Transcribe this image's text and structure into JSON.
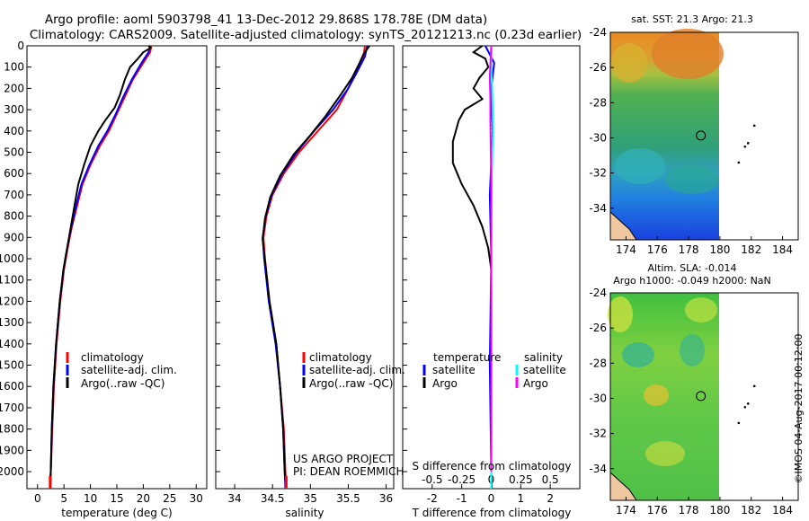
{
  "header": {
    "title_line1": "Argo profile: aoml 5903798_41 13-Dec-2012 29.868S 178.78E (DM data)",
    "title_line2": "Climatology: CARS2009. Satellite-adjusted climatology: synTS_20121213.nc (0.23d earlier)"
  },
  "colors": {
    "climatology": "#ff0000",
    "satellite": "#0000ff",
    "argo": "#000000",
    "argo_salinity_diff": "#ff00ff",
    "satellite_salinity_diff": "#00ffff"
  },
  "chart_data": [
    {
      "id": "temperature",
      "type": "line",
      "xlabel": "temperature (deg C)",
      "ylabel": "",
      "xlim": [
        -2,
        32
      ],
      "ylim": [
        2080,
        0
      ],
      "xticks": [
        "0",
        "5",
        "10",
        "15",
        "20",
        "25",
        "30"
      ],
      "xtick_values": [
        0,
        5,
        10,
        15,
        20,
        25,
        30
      ],
      "yticks": [
        "0",
        "100",
        "200",
        "300",
        "400",
        "500",
        "600",
        "700",
        "800",
        "900",
        "1000",
        "1100",
        "1200",
        "1300",
        "1400",
        "1500",
        "1600",
        "1700",
        "1800",
        "1900",
        "2000"
      ],
      "ytick_values": [
        0,
        100,
        200,
        300,
        400,
        500,
        600,
        700,
        800,
        900,
        1000,
        1100,
        1200,
        1300,
        1400,
        1500,
        1600,
        1700,
        1800,
        1900,
        2000
      ],
      "legend": [
        "climatology",
        "satellite-adj. clim.",
        "Argo(..raw -QC)"
      ],
      "series": [
        {
          "name": "climatology",
          "color": "#ff0000",
          "points": [
            [
              21.5,
              0
            ],
            [
              21.3,
              30
            ],
            [
              20.5,
              60
            ],
            [
              19.5,
              100
            ],
            [
              18.0,
              160
            ],
            [
              16.5,
              240
            ],
            [
              15.0,
              320
            ],
            [
              13.5,
              400
            ],
            [
              11.8,
              470
            ],
            [
              10.0,
              560
            ],
            [
              8.5,
              650
            ],
            [
              7.5,
              750
            ],
            [
              6.5,
              850
            ],
            [
              5.7,
              950
            ],
            [
              5.0,
              1050
            ],
            [
              4.3,
              1200
            ],
            [
              3.6,
              1400
            ],
            [
              3.1,
              1600
            ],
            [
              2.8,
              1800
            ],
            [
              2.5,
              2000
            ],
            [
              2.4,
              2080
            ]
          ]
        },
        {
          "name": "satellite-adj. clim.",
          "color": "#0000ff",
          "points": [
            [
              21.3,
              0
            ],
            [
              21.0,
              30
            ],
            [
              20.2,
              60
            ],
            [
              19.2,
              100
            ],
            [
              17.8,
              160
            ],
            [
              16.2,
              240
            ],
            [
              14.8,
              320
            ],
            [
              13.2,
              400
            ],
            [
              11.5,
              470
            ],
            [
              9.8,
              560
            ],
            [
              8.3,
              650
            ],
            [
              7.3,
              750
            ],
            [
              6.4,
              850
            ],
            [
              5.6,
              950
            ],
            [
              4.9,
              1050
            ],
            [
              4.2,
              1200
            ],
            [
              3.5,
              1400
            ],
            [
              3.0,
              1600
            ],
            [
              2.7,
              1800
            ],
            [
              2.5,
              2000
            ],
            [
              2.4,
              2080
            ]
          ]
        },
        {
          "name": "Argo",
          "color": "#000000",
          "points": [
            [
              21.0,
              0
            ],
            [
              21.4,
              10
            ],
            [
              20.0,
              30
            ],
            [
              19.0,
              60
            ],
            [
              17.5,
              100
            ],
            [
              16.5,
              160
            ],
            [
              15.6,
              230
            ],
            [
              14.6,
              290
            ],
            [
              12.8,
              350
            ],
            [
              11.5,
              400
            ],
            [
              10.0,
              470
            ],
            [
              8.8,
              560
            ],
            [
              7.7,
              650
            ],
            [
              7.0,
              750
            ],
            [
              6.3,
              850
            ],
            [
              5.6,
              950
            ],
            [
              4.9,
              1050
            ],
            [
              4.2,
              1200
            ],
            [
              3.5,
              1400
            ],
            [
              3.0,
              1600
            ],
            [
              2.7,
              1800
            ],
            [
              2.5,
              2000
            ],
            [
              2.4,
              2040
            ]
          ]
        }
      ]
    },
    {
      "id": "salinity",
      "type": "line",
      "xlabel": "salinity",
      "xlim": [
        33.75,
        36.1
      ],
      "ylim": [
        2080,
        0
      ],
      "xticks": [
        "34",
        "34.5",
        "35",
        "35.5",
        "36"
      ],
      "xtick_values": [
        34,
        34.5,
        35,
        35.5,
        36
      ],
      "legend": [
        "climatology",
        "satellite-adj. clim.",
        "Argo(..raw -QC)"
      ],
      "annotation": [
        "US ARGO PROJECT",
        "PI: DEAN ROEMMICH"
      ],
      "series": [
        {
          "name": "climatology",
          "color": "#ff0000",
          "points": [
            [
              35.72,
              0
            ],
            [
              35.7,
              50
            ],
            [
              35.6,
              120
            ],
            [
              35.5,
              200
            ],
            [
              35.35,
              300
            ],
            [
              35.1,
              400
            ],
            [
              34.85,
              500
            ],
            [
              34.65,
              600
            ],
            [
              34.5,
              700
            ],
            [
              34.42,
              800
            ],
            [
              34.38,
              900
            ],
            [
              34.4,
              1000
            ],
            [
              34.46,
              1200
            ],
            [
              34.55,
              1400
            ],
            [
              34.6,
              1600
            ],
            [
              34.65,
              1800
            ],
            [
              34.67,
              2000
            ],
            [
              34.68,
              2080
            ]
          ]
        },
        {
          "name": "satellite-adj. clim.",
          "color": "#0000ff",
          "points": [
            [
              35.75,
              0
            ],
            [
              35.72,
              50
            ],
            [
              35.62,
              120
            ],
            [
              35.5,
              200
            ],
            [
              35.3,
              300
            ],
            [
              35.05,
              400
            ],
            [
              34.82,
              500
            ],
            [
              34.63,
              600
            ],
            [
              34.49,
              700
            ],
            [
              34.41,
              800
            ],
            [
              34.37,
              900
            ],
            [
              34.39,
              1000
            ],
            [
              34.45,
              1200
            ],
            [
              34.54,
              1400
            ],
            [
              34.6,
              1600
            ],
            [
              34.64,
              1800
            ],
            [
              34.66,
              2000
            ],
            [
              34.67,
              2080
            ]
          ]
        },
        {
          "name": "Argo",
          "color": "#000000",
          "points": [
            [
              35.78,
              0
            ],
            [
              35.7,
              40
            ],
            [
              35.65,
              80
            ],
            [
              35.55,
              150
            ],
            [
              35.4,
              230
            ],
            [
              35.2,
              330
            ],
            [
              35.0,
              420
            ],
            [
              34.78,
              510
            ],
            [
              34.6,
              610
            ],
            [
              34.47,
              710
            ],
            [
              34.4,
              810
            ],
            [
              34.37,
              910
            ],
            [
              34.4,
              1010
            ],
            [
              34.46,
              1200
            ],
            [
              34.55,
              1400
            ],
            [
              34.6,
              1600
            ],
            [
              34.64,
              1800
            ],
            [
              34.66,
              2000
            ],
            [
              34.67,
              2040
            ]
          ]
        }
      ]
    },
    {
      "id": "difference",
      "type": "line",
      "xlabel": "T difference from climatology",
      "secondary_xlabel": "S difference from climatology",
      "xlim": [
        -3,
        3
      ],
      "ylim": [
        2080,
        0
      ],
      "xticks": [
        "-2",
        "-1",
        "0",
        "1",
        "2"
      ],
      "xtick_values": [
        -2,
        -1,
        0,
        1,
        2
      ],
      "secondary_xticks": [
        "-0.5",
        "-0.25",
        "0",
        "0.25",
        "0.5"
      ],
      "secondary_xtick_values": [
        -0.5,
        -0.25,
        0,
        0.25,
        0.5
      ],
      "legend_titles": [
        "temperature",
        "salinity"
      ],
      "legend": [
        [
          "satellite",
          "Argo"
        ],
        [
          "satellite",
          "Argo"
        ]
      ],
      "series": [
        {
          "name": "T satellite",
          "color": "#0000ff",
          "points": [
            [
              -0.2,
              0
            ],
            [
              0.1,
              80
            ],
            [
              0.0,
              200
            ],
            [
              0.05,
              400
            ],
            [
              -0.05,
              700
            ],
            [
              0.0,
              1000
            ],
            [
              -0.05,
              1500
            ],
            [
              0.0,
              2000
            ],
            [
              0.02,
              2080
            ]
          ]
        },
        {
          "name": "T Argo",
          "color": "#000000",
          "points": [
            [
              -0.3,
              0
            ],
            [
              -0.6,
              30
            ],
            [
              -0.2,
              60
            ],
            [
              -0.1,
              100
            ],
            [
              -0.4,
              150
            ],
            [
              -0.6,
              200
            ],
            [
              -0.3,
              250
            ],
            [
              -0.9,
              300
            ],
            [
              -1.1,
              350
            ],
            [
              -1.3,
              450
            ],
            [
              -1.3,
              550
            ],
            [
              -1.0,
              650
            ],
            [
              -0.6,
              750
            ],
            [
              -0.3,
              850
            ],
            [
              -0.1,
              950
            ],
            [
              0.0,
              1050
            ],
            [
              0.0,
              2000
            ]
          ]
        },
        {
          "name": "S satellite",
          "color": "#00ffff",
          "points": [
            [
              0.01,
              0
            ],
            [
              0.0,
              100
            ],
            [
              0.03,
              200
            ],
            [
              0.05,
              300
            ],
            [
              0.06,
              400
            ],
            [
              0.04,
              500
            ],
            [
              0.02,
              600
            ],
            [
              0.0,
              800
            ],
            [
              0.0,
              2080
            ]
          ]
        },
        {
          "name": "S Argo",
          "color": "#ff00ff",
          "points": [
            [
              0.0,
              0
            ],
            [
              -0.02,
              60
            ],
            [
              -0.05,
              150
            ],
            [
              -0.03,
              250
            ],
            [
              -0.03,
              350
            ],
            [
              -0.02,
              450
            ],
            [
              -0.01,
              550
            ],
            [
              0.0,
              650
            ],
            [
              0.0,
              750
            ],
            [
              0.0,
              2000
            ]
          ]
        }
      ]
    },
    {
      "id": "sst_map",
      "type": "heatmap",
      "title": "sat. SST: 21.3 Argo: 21.3",
      "xlim": [
        173,
        185
      ],
      "ylim": [
        -35.8,
        -24
      ],
      "xticks": [
        "174",
        "176",
        "178",
        "180",
        "182",
        "184"
      ],
      "xtick_values": [
        174,
        176,
        178,
        180,
        182,
        184
      ],
      "yticks": [
        "-24",
        "-26",
        "-28",
        "-30",
        "-32",
        "-34"
      ],
      "ytick_values": [
        -24,
        -26,
        -28,
        -30,
        -32,
        -34
      ],
      "argo_position": [
        178.78,
        -29.868
      ],
      "islands": [
        [
          182.2,
          -29.3
        ],
        [
          181.8,
          -30.3
        ],
        [
          181.6,
          -30.5
        ],
        [
          181.2,
          -31.4
        ]
      ]
    },
    {
      "id": "sla_map",
      "type": "heatmap",
      "title_line1": "Altim. SLA: -0.014",
      "title_line2": "Argo h1000: -0.049 h2000: NaN",
      "xlim": [
        173,
        185
      ],
      "ylim": [
        -35.8,
        -24
      ],
      "xticks": [
        "174",
        "176",
        "178",
        "180",
        "182",
        "184"
      ],
      "xtick_values": [
        174,
        176,
        178,
        180,
        182,
        184
      ],
      "yticks": [
        "-24",
        "-26",
        "-28",
        "-30",
        "-32",
        "-34"
      ],
      "ytick_values": [
        -24,
        -26,
        -28,
        -30,
        -32,
        -34
      ],
      "argo_position": [
        178.78,
        -29.868
      ],
      "islands": [
        [
          182.2,
          -29.3
        ],
        [
          181.8,
          -30.3
        ],
        [
          181.6,
          -30.5
        ],
        [
          181.2,
          -31.4
        ]
      ]
    }
  ],
  "footer": {
    "credit": "©IMOS 04-Aug-2017 00:12:00"
  }
}
